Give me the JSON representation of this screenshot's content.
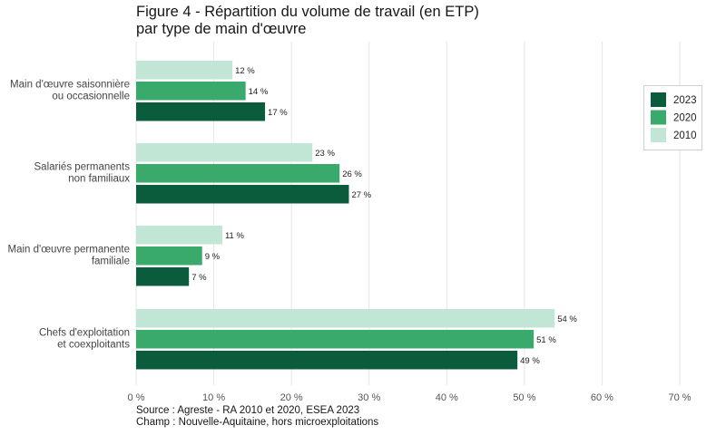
{
  "chart_data": {
    "type": "bar",
    "orientation": "horizontal",
    "title_lines": [
      "Figure 4 - Répartition du volume de travail (en ETP)",
      "par type de main d'œuvre"
    ],
    "categories": [
      [
        "Main d'œuvre saisonnière",
        "ou occasionnelle"
      ],
      [
        "Salariés permanents",
        "non familiaux"
      ],
      [
        "Main d'œuvre permanente",
        "familiale"
      ],
      [
        "Chefs d'exploitation",
        "et coexploitants"
      ]
    ],
    "series": [
      {
        "name": "2010",
        "color": "#c2e6d6",
        "values": [
          12.4,
          22.7,
          11.1,
          53.9
        ],
        "labels": [
          "12 %",
          "23 %",
          "11 %",
          "54 %"
        ]
      },
      {
        "name": "2020",
        "color": "#3aa96c",
        "values": [
          14.1,
          26.2,
          8.5,
          51.2
        ],
        "labels": [
          "14 %",
          "26 %",
          "9 %",
          "51 %"
        ]
      },
      {
        "name": "2023",
        "color": "#0b5c3c",
        "values": [
          16.6,
          27.4,
          6.8,
          49.1
        ],
        "labels": [
          "17 %",
          "27 %",
          "7 %",
          "49 %"
        ]
      }
    ],
    "xlim": [
      0,
      70
    ],
    "xticks": [
      0,
      10,
      20,
      30,
      40,
      50,
      60,
      70
    ],
    "xtick_labels": [
      "0 %",
      "10 %",
      "20 %",
      "30 %",
      "40 %",
      "50 %",
      "60 %",
      "70 %"
    ],
    "xlabel": "",
    "ylabel": "",
    "grid": "vertical",
    "legend": {
      "placement": "right",
      "order": [
        "2023",
        "2020",
        "2010"
      ]
    }
  },
  "footer": {
    "source": "Source : Agreste - RA 2010 et 2020, ESEA 2023",
    "champ": "Champ : Nouvelle-Aquitaine, hors microexploitations"
  }
}
